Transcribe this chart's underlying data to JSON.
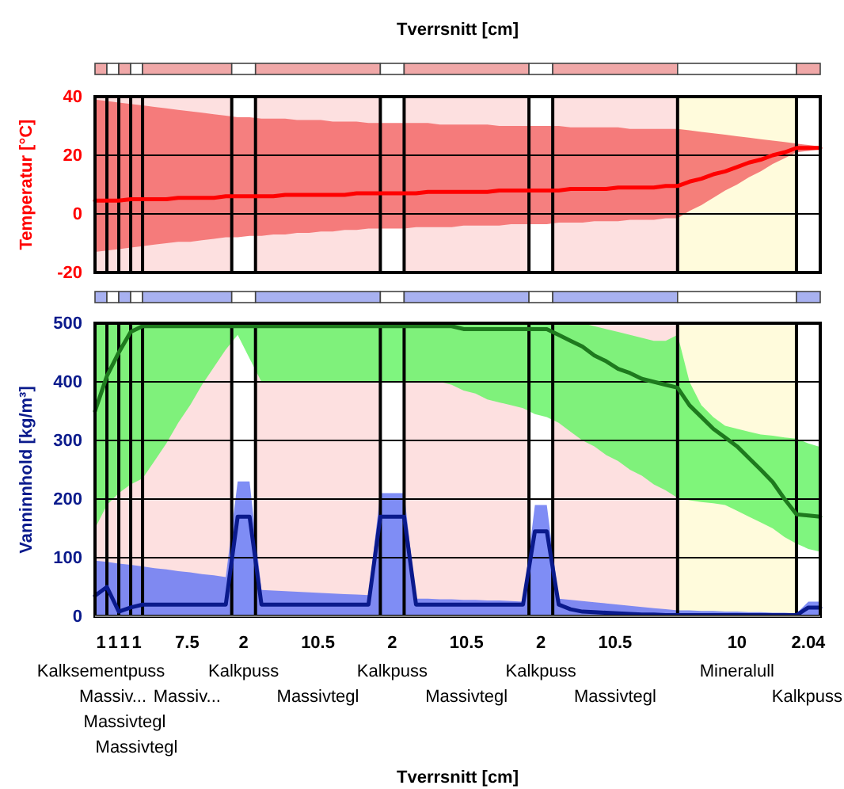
{
  "chart_data": [
    {
      "type": "line",
      "title": "Tverrsnitt [cm]",
      "ylabel": "Temperatur [°C]",
      "categories": [
        null,
        null,
        null,
        null,
        null,
        null,
        null,
        null,
        null,
        null,
        null,
        null,
        null,
        null,
        null,
        null,
        null,
        null,
        null,
        null,
        null,
        null,
        null,
        null,
        null,
        null,
        null,
        null,
        null,
        null,
        null,
        null,
        null,
        null,
        null,
        null,
        null,
        null,
        null,
        null,
        null,
        null,
        null,
        null,
        null,
        null,
        null,
        null,
        null,
        null,
        null,
        null,
        null,
        null,
        null,
        null,
        null,
        null,
        null,
        null,
        null,
        null
      ],
      "ylim": [
        -20,
        40
      ],
      "yticks": [
        -20,
        0,
        20,
        40
      ],
      "grid": true,
      "tick_labels": "y",
      "series": [
        {
          "color": "#ff0000",
          "values": [
            4.5,
            4.5,
            4.5,
            5,
            5,
            5,
            5,
            5.5,
            5.5,
            5.5,
            5.5,
            6,
            6,
            6,
            6,
            6,
            6.5,
            6.5,
            6.5,
            6.5,
            6.5,
            6.5,
            7,
            7,
            7,
            7,
            7,
            7,
            7.5,
            7.5,
            7.5,
            7.5,
            7.5,
            7.5,
            8,
            8,
            8,
            8,
            8,
            8,
            8.5,
            8.5,
            8.5,
            8.5,
            9,
            9,
            9,
            9,
            9.5,
            9.5,
            11,
            12,
            13.5,
            14.5,
            16,
            17.5,
            18.5,
            20,
            21,
            22.5,
            22.5,
            22.5
          ],
          "lower": [
            -13,
            -12.5,
            -12,
            -11.5,
            -11,
            -10.5,
            -10,
            -9.5,
            -9.5,
            -9,
            -8.5,
            -8,
            -8,
            -7.5,
            -7.5,
            -7,
            -7,
            -6.5,
            -6.5,
            -6,
            -6,
            -5.5,
            -5.5,
            -5,
            -5,
            -5,
            -5,
            -4.5,
            -4.5,
            -4.5,
            -4.5,
            -4,
            -4,
            -4,
            -4,
            -3.5,
            -3.5,
            -3.5,
            -3.5,
            -3,
            -3,
            -3,
            -2.5,
            -2.5,
            -2.5,
            -2,
            -2,
            -2,
            -1.5,
            -1.5,
            1,
            3,
            5.5,
            8,
            10,
            12.5,
            14.5,
            17,
            19,
            21,
            21.5,
            22
          ],
          "upper": [
            39,
            38.5,
            38,
            37.5,
            37,
            36.5,
            36,
            35.5,
            35,
            34.5,
            34,
            33.5,
            33,
            33,
            32.5,
            32.5,
            32.5,
            32,
            32,
            32,
            31.5,
            31.5,
            31.5,
            31,
            31,
            31,
            31,
            31,
            31,
            30.5,
            30.5,
            30.5,
            30.5,
            30.5,
            30,
            30,
            30,
            30,
            30,
            30,
            29.5,
            29.5,
            29.5,
            29.5,
            29.5,
            29,
            29,
            29,
            29,
            29,
            28.5,
            28,
            27.5,
            27,
            26.5,
            26,
            25.5,
            25,
            24.5,
            24,
            23.5,
            23
          ]
        }
      ]
    },
    {
      "type": "line",
      "xlabel": "Tverrsnitt [cm]",
      "ylabel": "Vanninnhold [kg/m³]",
      "categories": [
        null,
        null,
        null,
        null,
        null,
        null,
        null,
        null,
        null,
        null,
        null,
        null,
        null,
        null,
        null,
        null,
        null,
        null,
        null,
        null,
        null,
        null,
        null,
        null,
        null,
        null,
        null,
        null,
        null,
        null,
        null,
        null,
        null,
        null,
        null,
        null,
        null,
        null,
        null,
        null,
        null,
        null,
        null,
        null,
        null,
        null,
        null,
        null,
        null,
        null,
        null,
        null,
        null,
        null,
        null,
        null,
        null,
        null,
        null,
        null,
        null,
        null
      ],
      "ylim": [
        0,
        500
      ],
      "yticks": [
        0,
        100,
        200,
        300,
        400,
        500
      ],
      "grid": true,
      "annotations": [
        "1",
        "1",
        "1",
        "1",
        "7.5",
        "2",
        "10.5",
        "2",
        "10.5",
        "2",
        "10.5",
        "10",
        "2.04",
        "Kalksementpuss",
        "Massiv...",
        "Massivtegl",
        "Massivtegl",
        "Massiv...",
        "Kalkpuss",
        "Massivtegl",
        "Kalkpuss",
        "Massivtegl",
        "Kalkpuss",
        "Massivtegl",
        "Mineralull",
        "Kalkpuss"
      ],
      "series": [
        {
          "color": "#1e7a1e",
          "values": [
            350,
            410,
            450,
            485,
            495,
            495,
            495,
            495,
            495,
            495,
            495,
            495,
            495,
            495,
            495,
            495,
            495,
            495,
            495,
            495,
            495,
            495,
            495,
            495,
            495,
            495,
            495,
            495,
            495,
            495,
            495,
            490,
            490,
            490,
            490,
            490,
            490,
            490,
            490,
            480,
            470,
            460,
            445,
            435,
            422,
            415,
            405,
            400,
            395,
            390,
            360,
            340,
            320,
            305,
            290,
            270,
            250,
            229,
            200,
            174,
            172,
            170
          ],
          "lower": [
            150,
            190,
            210,
            225,
            235,
            265,
            295,
            330,
            360,
            395,
            425,
            455,
            480,
            440,
            400,
            400,
            400,
            400,
            400,
            400,
            400,
            400,
            400,
            400,
            400,
            400,
            400,
            400,
            400,
            400,
            395,
            385,
            380,
            370,
            365,
            360,
            355,
            345,
            340,
            330,
            315,
            300,
            290,
            275,
            265,
            250,
            240,
            225,
            215,
            202,
            198,
            195,
            193,
            190,
            180,
            170,
            160,
            150,
            135,
            124,
            115,
            110
          ],
          "upper": [
            500,
            500,
            500,
            500,
            500,
            500,
            500,
            500,
            500,
            500,
            500,
            500,
            500,
            500,
            500,
            500,
            500,
            500,
            500,
            500,
            500,
            500,
            500,
            500,
            500,
            500,
            500,
            500,
            500,
            500,
            500,
            500,
            500,
            500,
            500,
            500,
            500,
            500,
            500,
            500,
            500,
            500,
            495,
            490,
            485,
            480,
            475,
            470,
            470,
            480,
            400,
            360,
            340,
            325,
            320,
            315,
            310,
            308,
            305,
            303,
            295,
            289
          ]
        },
        {
          "color": "#0a1a8c",
          "values": [
            35,
            50,
            8,
            15,
            20,
            20,
            20,
            20,
            20,
            20,
            20,
            20,
            170,
            170,
            20,
            20,
            20,
            20,
            20,
            20,
            20,
            20,
            20,
            20,
            170,
            170,
            170,
            20,
            20,
            20,
            20,
            20,
            20,
            20,
            20,
            20,
            20,
            145,
            145,
            20,
            12,
            8,
            7,
            6,
            5,
            4,
            3,
            3,
            2,
            2,
            2,
            2,
            2,
            2,
            2,
            2,
            2,
            2,
            2,
            2,
            15,
            15
          ],
          "lower": [
            0,
            0,
            0,
            0,
            0,
            0,
            0,
            0,
            0,
            0,
            0,
            0,
            0,
            0,
            0,
            0,
            0,
            0,
            0,
            0,
            0,
            0,
            0,
            0,
            0,
            0,
            0,
            0,
            0,
            0,
            0,
            0,
            0,
            0,
            0,
            0,
            0,
            0,
            0,
            0,
            0,
            0,
            0,
            0,
            0,
            0,
            0,
            0,
            0,
            0,
            0,
            0,
            0,
            0,
            0,
            0,
            0,
            0,
            0,
            0,
            0,
            0
          ],
          "upper": [
            95,
            93,
            90,
            88,
            85,
            82,
            80,
            77,
            75,
            72,
            70,
            67,
            230,
            230,
            45,
            44,
            43,
            42,
            41,
            40,
            39,
            38,
            37,
            36,
            210,
            210,
            210,
            30,
            30,
            29,
            29,
            28,
            28,
            27,
            27,
            26,
            25,
            190,
            190,
            30,
            28,
            26,
            24,
            22,
            20,
            18,
            16,
            14,
            12,
            10,
            10,
            9,
            9,
            8,
            8,
            7,
            7,
            6,
            6,
            5,
            25,
            25
          ]
        }
      ]
    }
  ]
}
